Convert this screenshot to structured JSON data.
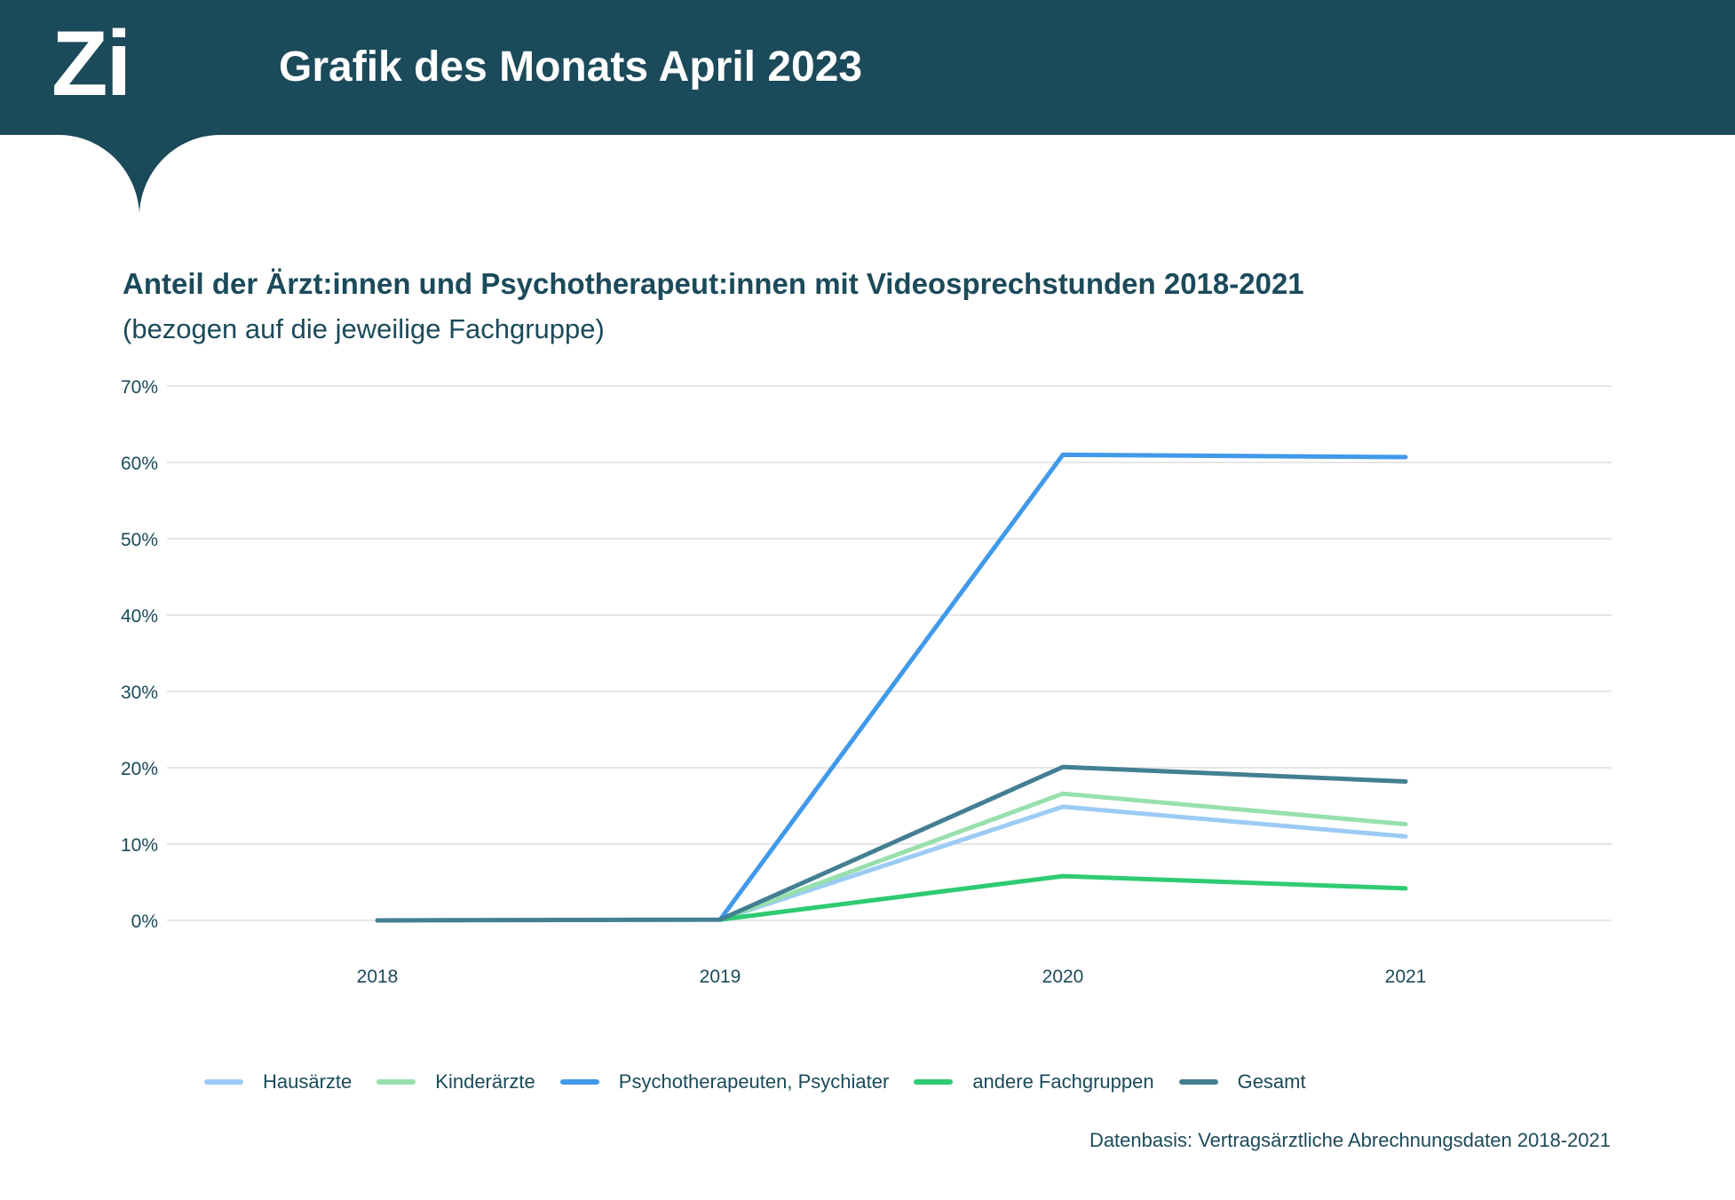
{
  "header": {
    "logo_text": "Zi",
    "title": "Grafik des Monats April 2023"
  },
  "chart_data": {
    "type": "line",
    "title": "Anteil der Ärzt:innen und Psychotherapeut:innen mit Videosprechstunden 2018-2021",
    "subtitle": "(bezogen auf die jeweilige Fachgruppe)",
    "xlabel": "",
    "ylabel": "",
    "x": [
      "2018",
      "2019",
      "2020",
      "2021"
    ],
    "y_ticks": [
      "0%",
      "10%",
      "20%",
      "30%",
      "40%",
      "50%",
      "60%",
      "70%"
    ],
    "ylim": [
      0,
      70
    ],
    "grid": true,
    "legend_position": "bottom",
    "series": [
      {
        "name": "Hausärzte",
        "color": "#9ccbf5",
        "values": [
          null,
          0.1,
          14.9,
          11.0
        ]
      },
      {
        "name": "Kinderärzte",
        "color": "#97e0ad",
        "values": [
          null,
          0.1,
          16.6,
          12.6
        ]
      },
      {
        "name": "Psychotherapeuten, Psychiater",
        "color": "#4199ea",
        "values": [
          null,
          0.1,
          61.0,
          60.7
        ]
      },
      {
        "name": "andere Fachgruppen",
        "color": "#2ecb72",
        "values": [
          null,
          0.1,
          5.8,
          4.2
        ]
      },
      {
        "name": "Gesamt",
        "color": "#437f92",
        "values": [
          0.0,
          0.1,
          20.1,
          18.2
        ]
      }
    ]
  },
  "footer": {
    "source": "Datenbasis: Vertragsärztliche Abrechnungsdaten 2018-2021"
  }
}
